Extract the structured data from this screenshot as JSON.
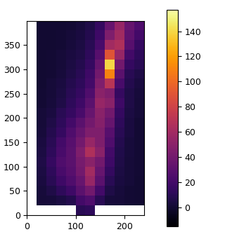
{
  "chart_data": {
    "type": "heatmap",
    "xlim": [
      0,
      240
    ],
    "ylim": [
      0,
      400
    ],
    "xticks": [
      0,
      100,
      200
    ],
    "yticks": [
      0,
      50,
      100,
      150,
      200,
      250,
      300,
      350
    ],
    "colorbar_range": [
      -15,
      157
    ],
    "colorbar_ticks": [
      0,
      20,
      40,
      60,
      80,
      100,
      120,
      140
    ],
    "cells": [
      [
        null,
        null,
        null,
        null,
        null,
        10,
        12,
        null,
        null,
        null,
        null,
        null
      ],
      [
        null,
        2,
        3,
        5,
        8,
        20,
        25,
        10,
        3,
        2,
        1,
        0
      ],
      [
        null,
        3,
        6,
        12,
        18,
        30,
        40,
        20,
        6,
        3,
        1,
        0
      ],
      [
        null,
        4,
        10,
        18,
        25,
        35,
        55,
        30,
        10,
        4,
        2,
        0
      ],
      [
        null,
        5,
        12,
        22,
        28,
        40,
        60,
        35,
        14,
        5,
        2,
        1
      ],
      [
        null,
        6,
        15,
        25,
        30,
        42,
        50,
        40,
        18,
        6,
        2,
        1
      ],
      [
        null,
        5,
        12,
        22,
        30,
        45,
        65,
        50,
        20,
        7,
        3,
        1
      ],
      [
        null,
        4,
        10,
        20,
        28,
        40,
        55,
        45,
        25,
        8,
        3,
        1
      ],
      [
        null,
        3,
        8,
        15,
        25,
        35,
        45,
        45,
        28,
        10,
        4,
        1
      ],
      [
        null,
        2,
        6,
        12,
        20,
        30,
        40,
        48,
        35,
        12,
        4,
        1
      ],
      [
        null,
        2,
        4,
        10,
        15,
        22,
        35,
        50,
        40,
        15,
        5,
        2
      ],
      [
        null,
        1,
        3,
        6,
        12,
        18,
        30,
        55,
        50,
        18,
        6,
        2
      ],
      [
        null,
        1,
        2,
        5,
        10,
        15,
        25,
        50,
        45,
        15,
        6,
        3
      ],
      [
        null,
        0,
        2,
        4,
        8,
        12,
        20,
        45,
        70,
        22,
        8,
        4
      ],
      [
        null,
        0,
        1,
        3,
        6,
        10,
        18,
        40,
        110,
        30,
        10,
        6
      ],
      [
        null,
        0,
        1,
        2,
        5,
        8,
        15,
        35,
        140,
        40,
        15,
        10
      ],
      [
        null,
        0,
        1,
        2,
        4,
        6,
        12,
        28,
        90,
        55,
        20,
        12
      ],
      [
        null,
        0,
        0,
        1,
        3,
        5,
        10,
        22,
        60,
        65,
        28,
        15
      ],
      [
        null,
        0,
        0,
        1,
        2,
        4,
        8,
        18,
        45,
        60,
        32,
        20
      ],
      [
        null,
        0,
        0,
        0,
        1,
        3,
        6,
        14,
        35,
        55,
        35,
        25
      ]
    ]
  }
}
